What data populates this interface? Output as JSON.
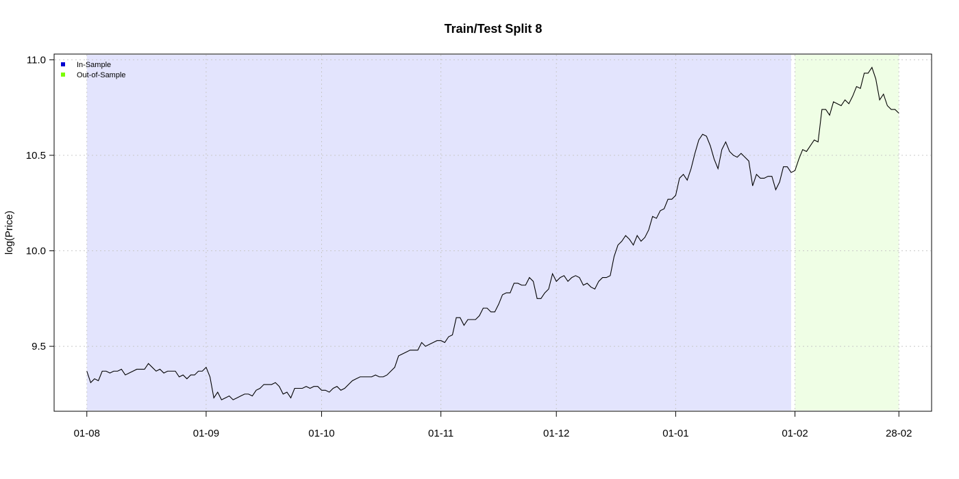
{
  "chart_data": {
    "type": "line",
    "title": "Train/Test Split 8",
    "xlabel": "",
    "ylabel": "log(Price)",
    "ylim": [
      9.16,
      11.03
    ],
    "y_ticks": [
      9.5,
      10.0,
      10.5,
      11.0
    ],
    "y_tick_labels": [
      "9.5",
      "10.0",
      "10.5",
      "11.0"
    ],
    "x_ticks": [
      0,
      31,
      61,
      92,
      122,
      153,
      184,
      211
    ],
    "x_tick_labels": [
      "01-08",
      "01-09",
      "01-10",
      "01-11",
      "01-12",
      "01-01",
      "01-02",
      "28-02"
    ],
    "xlim": [
      -8.5,
      219.5
    ],
    "grid": true,
    "colors": {
      "in_sample": "#e3e4fd",
      "out_of_sample": "#effee5",
      "line": "#000000",
      "in_sample_legend": "#0000cd",
      "out_of_sample_legend": "#7cfc00"
    },
    "regions": [
      {
        "name": "In-Sample",
        "x_start": 0,
        "x_end": 183
      },
      {
        "name": "Out-of-Sample",
        "x_start": 184,
        "x_end": 211
      }
    ],
    "legend": {
      "placement": "top-left",
      "entries": [
        {
          "label": "In-Sample",
          "color": "#0000cd"
        },
        {
          "label": "Out-of-Sample",
          "color": "#7cfc00"
        }
      ]
    },
    "series": [
      {
        "points": [
          [
            0,
            9.37
          ],
          [
            1,
            9.31
          ],
          [
            2,
            9.33
          ],
          [
            3,
            9.32
          ],
          [
            4,
            9.37
          ],
          [
            5,
            9.37
          ],
          [
            6,
            9.36
          ],
          [
            7,
            9.37
          ],
          [
            8,
            9.37
          ],
          [
            9,
            9.38
          ],
          [
            10,
            9.35
          ],
          [
            11,
            9.36
          ],
          [
            12,
            9.37
          ],
          [
            13,
            9.38
          ],
          [
            14,
            9.38
          ],
          [
            15,
            9.38
          ],
          [
            16,
            9.41
          ],
          [
            17,
            9.39
          ],
          [
            18,
            9.37
          ],
          [
            19,
            9.38
          ],
          [
            20,
            9.36
          ],
          [
            21,
            9.37
          ],
          [
            22,
            9.37
          ],
          [
            23,
            9.37
          ],
          [
            24,
            9.34
          ],
          [
            25,
            9.35
          ],
          [
            26,
            9.33
          ],
          [
            27,
            9.35
          ],
          [
            28,
            9.35
          ],
          [
            29,
            9.37
          ],
          [
            30,
            9.37
          ],
          [
            31,
            9.39
          ],
          [
            32,
            9.34
          ],
          [
            33,
            9.23
          ],
          [
            34,
            9.26
          ],
          [
            35,
            9.22
          ],
          [
            36,
            9.23
          ],
          [
            37,
            9.24
          ],
          [
            38,
            9.22
          ],
          [
            39,
            9.23
          ],
          [
            40,
            9.24
          ],
          [
            41,
            9.25
          ],
          [
            42,
            9.25
          ],
          [
            43,
            9.24
          ],
          [
            44,
            9.27
          ],
          [
            45,
            9.28
          ],
          [
            46,
            9.3
          ],
          [
            47,
            9.3
          ],
          [
            48,
            9.3
          ],
          [
            49,
            9.31
          ],
          [
            50,
            9.29
          ],
          [
            51,
            9.25
          ],
          [
            52,
            9.26
          ],
          [
            53,
            9.23
          ],
          [
            54,
            9.28
          ],
          [
            55,
            9.28
          ],
          [
            56,
            9.28
          ],
          [
            57,
            9.29
          ],
          [
            58,
            9.28
          ],
          [
            59,
            9.29
          ],
          [
            60,
            9.29
          ],
          [
            61,
            9.27
          ],
          [
            62,
            9.27
          ],
          [
            63,
            9.26
          ],
          [
            64,
            9.28
          ],
          [
            65,
            9.29
          ],
          [
            66,
            9.27
          ],
          [
            67,
            9.28
          ],
          [
            68,
            9.3
          ],
          [
            69,
            9.32
          ],
          [
            70,
            9.33
          ],
          [
            71,
            9.34
          ],
          [
            72,
            9.34
          ],
          [
            73,
            9.34
          ],
          [
            74,
            9.34
          ],
          [
            75,
            9.35
          ],
          [
            76,
            9.34
          ],
          [
            77,
            9.34
          ],
          [
            78,
            9.35
          ],
          [
            79,
            9.37
          ],
          [
            80,
            9.39
          ],
          [
            81,
            9.45
          ],
          [
            82,
            9.46
          ],
          [
            83,
            9.47
          ],
          [
            84,
            9.48
          ],
          [
            85,
            9.48
          ],
          [
            86,
            9.48
          ],
          [
            87,
            9.52
          ],
          [
            88,
            9.5
          ],
          [
            89,
            9.51
          ],
          [
            90,
            9.52
          ],
          [
            91,
            9.53
          ],
          [
            92,
            9.53
          ],
          [
            93,
            9.52
          ],
          [
            94,
            9.55
          ],
          [
            95,
            9.56
          ],
          [
            96,
            9.65
          ],
          [
            97,
            9.65
          ],
          [
            98,
            9.61
          ],
          [
            99,
            9.64
          ],
          [
            100,
            9.64
          ],
          [
            101,
            9.64
          ],
          [
            102,
            9.66
          ],
          [
            103,
            9.7
          ],
          [
            104,
            9.7
          ],
          [
            105,
            9.68
          ],
          [
            106,
            9.68
          ],
          [
            107,
            9.72
          ],
          [
            108,
            9.77
          ],
          [
            109,
            9.78
          ],
          [
            110,
            9.78
          ],
          [
            111,
            9.83
          ],
          [
            112,
            9.83
          ],
          [
            113,
            9.82
          ],
          [
            114,
            9.82
          ],
          [
            115,
            9.86
          ],
          [
            116,
            9.84
          ],
          [
            117,
            9.75
          ],
          [
            118,
            9.75
          ],
          [
            119,
            9.78
          ],
          [
            120,
            9.8
          ],
          [
            121,
            9.88
          ],
          [
            122,
            9.84
          ],
          [
            123,
            9.86
          ],
          [
            124,
            9.87
          ],
          [
            125,
            9.84
          ],
          [
            126,
            9.86
          ],
          [
            127,
            9.87
          ],
          [
            128,
            9.86
          ],
          [
            129,
            9.82
          ],
          [
            130,
            9.83
          ],
          [
            131,
            9.81
          ],
          [
            132,
            9.8
          ],
          [
            133,
            9.84
          ],
          [
            134,
            9.86
          ],
          [
            135,
            9.86
          ],
          [
            136,
            9.87
          ],
          [
            137,
            9.97
          ],
          [
            138,
            10.03
          ],
          [
            139,
            10.05
          ],
          [
            140,
            10.08
          ],
          [
            141,
            10.06
          ],
          [
            142,
            10.03
          ],
          [
            143,
            10.08
          ],
          [
            144,
            10.05
          ],
          [
            145,
            10.07
          ],
          [
            146,
            10.11
          ],
          [
            147,
            10.18
          ],
          [
            148,
            10.17
          ],
          [
            149,
            10.21
          ],
          [
            150,
            10.22
          ],
          [
            151,
            10.27
          ],
          [
            152,
            10.27
          ],
          [
            153,
            10.29
          ],
          [
            154,
            10.38
          ],
          [
            155,
            10.4
          ],
          [
            156,
            10.37
          ],
          [
            157,
            10.43
          ],
          [
            158,
            10.51
          ],
          [
            159,
            10.58
          ],
          [
            160,
            10.61
          ],
          [
            161,
            10.6
          ],
          [
            162,
            10.55
          ],
          [
            163,
            10.48
          ],
          [
            164,
            10.43
          ],
          [
            165,
            10.53
          ],
          [
            166,
            10.57
          ],
          [
            167,
            10.52
          ],
          [
            168,
            10.5
          ],
          [
            169,
            10.49
          ],
          [
            170,
            10.51
          ],
          [
            171,
            10.49
          ],
          [
            172,
            10.47
          ],
          [
            173,
            10.34
          ],
          [
            174,
            10.4
          ],
          [
            175,
            10.38
          ],
          [
            176,
            10.38
          ],
          [
            177,
            10.39
          ],
          [
            178,
            10.39
          ],
          [
            179,
            10.32
          ],
          [
            180,
            10.36
          ],
          [
            181,
            10.44
          ],
          [
            182,
            10.44
          ],
          [
            183,
            10.41
          ],
          [
            184,
            10.42
          ],
          [
            185,
            10.48
          ],
          [
            186,
            10.53
          ],
          [
            187,
            10.52
          ],
          [
            188,
            10.55
          ],
          [
            189,
            10.58
          ],
          [
            190,
            10.57
          ],
          [
            191,
            10.74
          ],
          [
            192,
            10.74
          ],
          [
            193,
            10.71
          ],
          [
            194,
            10.78
          ],
          [
            195,
            10.77
          ],
          [
            196,
            10.76
          ],
          [
            197,
            10.79
          ],
          [
            198,
            10.77
          ],
          [
            199,
            10.81
          ],
          [
            200,
            10.86
          ],
          [
            201,
            10.85
          ],
          [
            202,
            10.93
          ],
          [
            203,
            10.93
          ],
          [
            204,
            10.96
          ],
          [
            205,
            10.9
          ],
          [
            206,
            10.79
          ],
          [
            207,
            10.82
          ],
          [
            208,
            10.76
          ],
          [
            209,
            10.74
          ],
          [
            210,
            10.74
          ],
          [
            211,
            10.72
          ]
        ]
      }
    ]
  }
}
